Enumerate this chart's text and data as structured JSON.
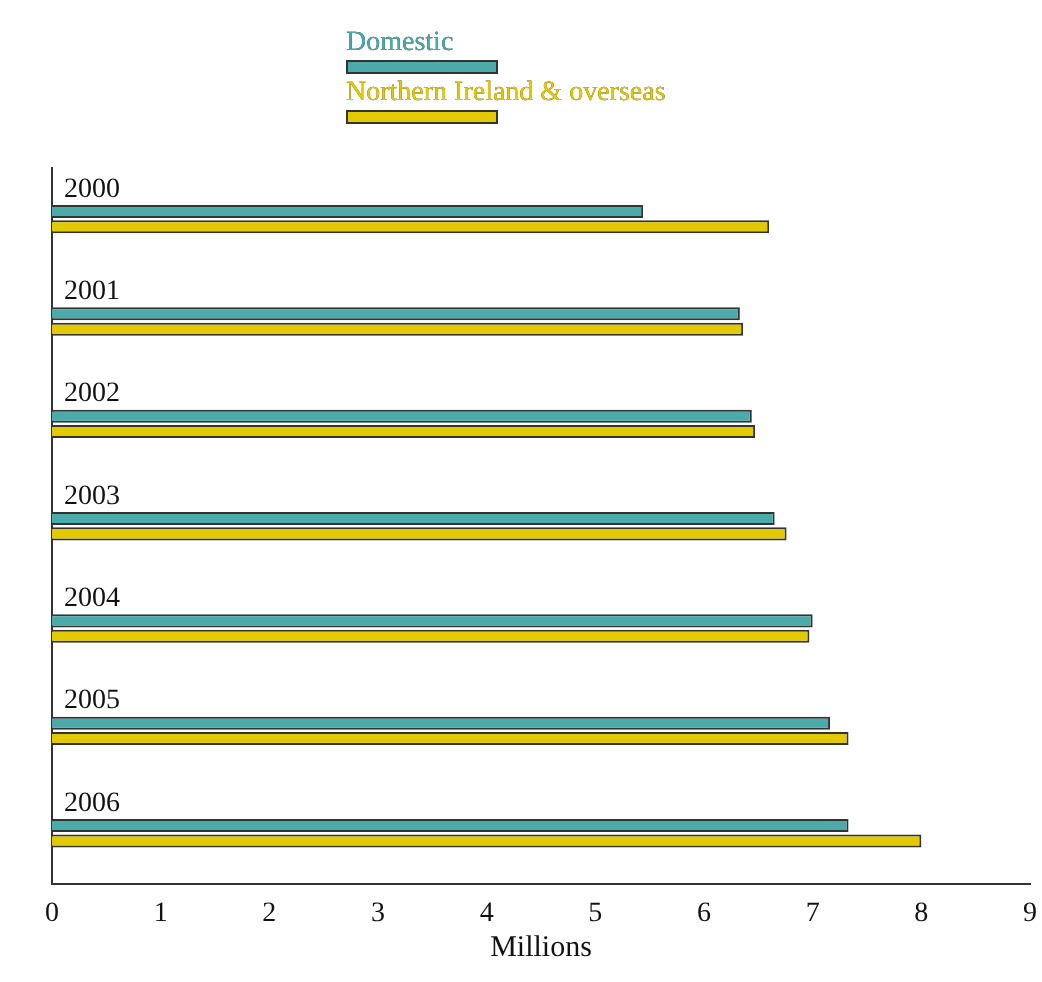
{
  "chart_data": {
    "type": "bar",
    "orientation": "horizontal",
    "xlabel": "Millions",
    "categories": [
      "2000",
      "2001",
      "2002",
      "2003",
      "2004",
      "2005",
      "2006"
    ],
    "series": [
      {
        "name": "Domestic",
        "color": "#4aabaa",
        "values": [
          5.44,
          6.33,
          6.44,
          6.65,
          7.0,
          7.16,
          7.33
        ]
      },
      {
        "name": "Northern Ireland & overseas",
        "color": "#e2c900",
        "values": [
          6.6,
          6.36,
          6.47,
          6.76,
          6.97,
          7.33,
          8.0
        ]
      }
    ],
    "xlim": [
      0,
      9
    ],
    "xticks": [
      0,
      1,
      2,
      3,
      4,
      5,
      6,
      7,
      8,
      9
    ],
    "grid": false,
    "legend": "top"
  }
}
